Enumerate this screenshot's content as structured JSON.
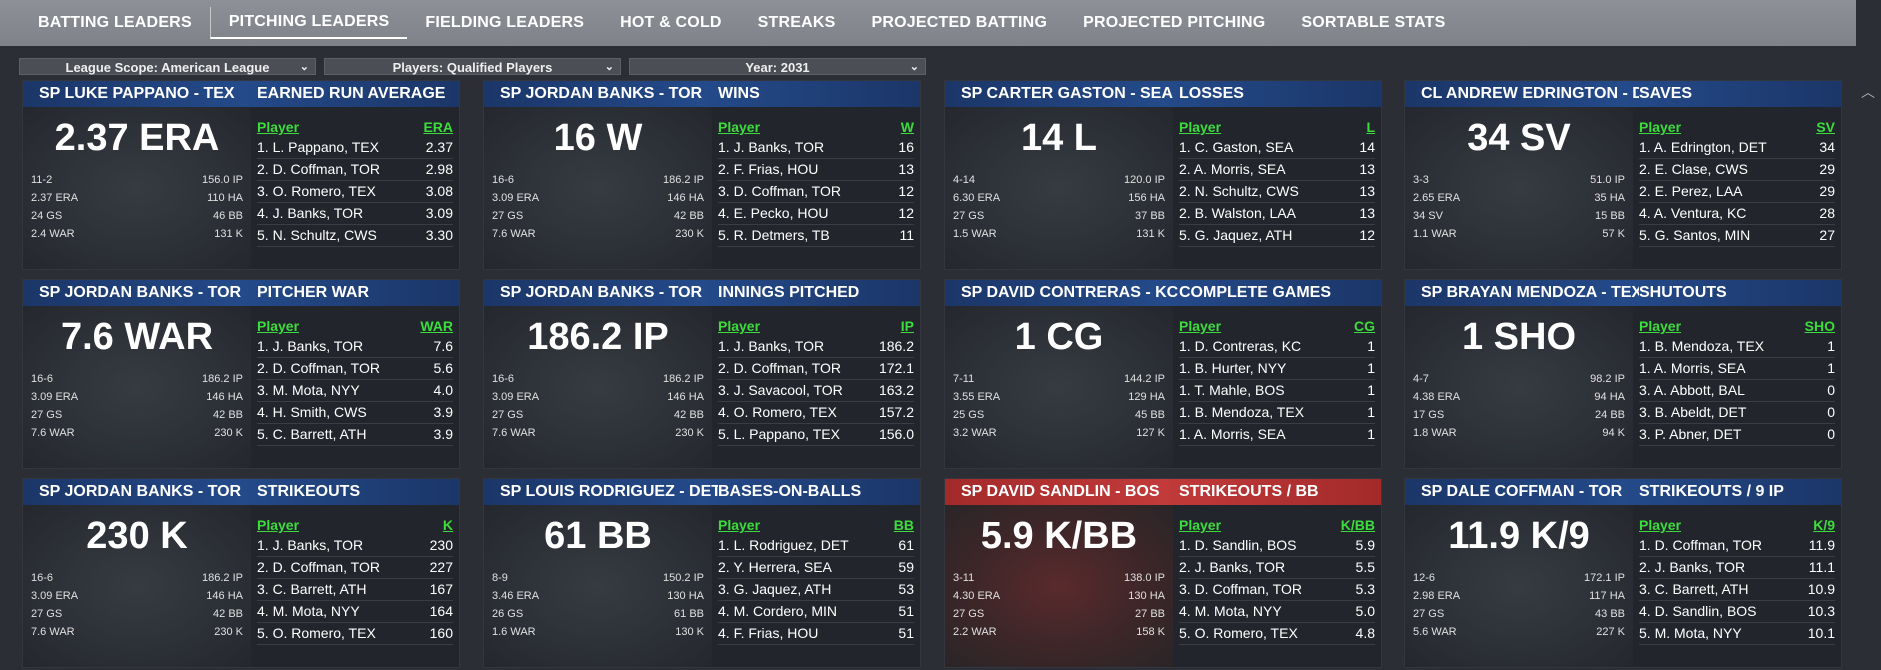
{
  "tabs": [
    "BATTING LEADERS",
    "PITCHING LEADERS",
    "FIELDING LEADERS",
    "HOT & COLD",
    "STREAKS",
    "PROJECTED BATTING",
    "PROJECTED PITCHING",
    "SORTABLE STATS"
  ],
  "active_tab": 1,
  "filters": {
    "scope": "League Scope: American League",
    "players": "Players: Qualified Players",
    "year": "Year: 2031"
  },
  "cards": [
    {
      "player": "SP LUKE PAPPANO - TEX",
      "stat": "EARNED RUN AVERAGE",
      "big": "2.37 ERA",
      "col": "ERA",
      "lines": [
        [
          "11-2",
          "156.0 IP"
        ],
        [
          "2.37 ERA",
          "110 HA"
        ],
        [
          "24 GS",
          "46 BB"
        ],
        [
          "2.4 WAR",
          "131 K"
        ]
      ],
      "rows": [
        [
          "1. L. Pappano, TEX",
          "2.37"
        ],
        [
          "2. D. Coffman, TOR",
          "2.98"
        ],
        [
          "3. O. Romero, TEX",
          "3.08"
        ],
        [
          "4. J. Banks, TOR",
          "3.09"
        ],
        [
          "5. N. Schultz, CWS",
          "3.30"
        ]
      ]
    },
    {
      "player": "SP JORDAN BANKS - TOR",
      "stat": "WINS",
      "big": "16 W",
      "col": "W",
      "lines": [
        [
          "16-6",
          "186.2 IP"
        ],
        [
          "3.09 ERA",
          "146 HA"
        ],
        [
          "27 GS",
          "42 BB"
        ],
        [
          "7.6 WAR",
          "230 K"
        ]
      ],
      "rows": [
        [
          "1. J. Banks, TOR",
          "16"
        ],
        [
          "2. F. Frias, HOU",
          "13"
        ],
        [
          "3. D. Coffman, TOR",
          "12"
        ],
        [
          "4. E. Pecko, HOU",
          "12"
        ],
        [
          "5. R. Detmers, TB",
          "11"
        ]
      ]
    },
    {
      "player": "SP CARTER GASTON - SEA",
      "stat": "LOSSES",
      "big": "14 L",
      "col": "L",
      "lines": [
        [
          "4-14",
          "120.0 IP"
        ],
        [
          "6.30 ERA",
          "156 HA"
        ],
        [
          "27 GS",
          "37 BB"
        ],
        [
          "1.5 WAR",
          "131 K"
        ]
      ],
      "rows": [
        [
          "1. C. Gaston, SEA",
          "14"
        ],
        [
          "2. A. Morris, SEA",
          "13"
        ],
        [
          "2. N. Schultz, CWS",
          "13"
        ],
        [
          "2. B. Walston, LAA",
          "13"
        ],
        [
          "5. G. Jaquez, ATH",
          "12"
        ]
      ]
    },
    {
      "player": "CL ANDREW EDRINGTON - DET",
      "stat": "SAVES",
      "big": "34 SV",
      "col": "SV",
      "lines": [
        [
          "3-3",
          "51.0 IP"
        ],
        [
          "2.65 ERA",
          "35 HA"
        ],
        [
          "34 SV",
          "15 BB"
        ],
        [
          "1.1 WAR",
          "57 K"
        ]
      ],
      "rows": [
        [
          "1. A. Edrington, DET",
          "34"
        ],
        [
          "2. E. Clase, CWS",
          "29"
        ],
        [
          "2. E. Perez, LAA",
          "29"
        ],
        [
          "4. A. Ventura, KC",
          "28"
        ],
        [
          "5. G. Santos, MIN",
          "27"
        ]
      ]
    },
    {
      "player": "SP JORDAN BANKS - TOR",
      "stat": "PITCHER WAR",
      "big": "7.6 WAR",
      "col": "WAR",
      "lines": [
        [
          "16-6",
          "186.2 IP"
        ],
        [
          "3.09 ERA",
          "146 HA"
        ],
        [
          "27 GS",
          "42 BB"
        ],
        [
          "7.6 WAR",
          "230 K"
        ]
      ],
      "rows": [
        [
          "1. J. Banks, TOR",
          "7.6"
        ],
        [
          "2. D. Coffman, TOR",
          "5.6"
        ],
        [
          "3. M. Mota, NYY",
          "4.0"
        ],
        [
          "4. H. Smith, CWS",
          "3.9"
        ],
        [
          "5. C. Barrett, ATH",
          "3.9"
        ]
      ]
    },
    {
      "player": "SP JORDAN BANKS - TOR",
      "stat": "INNINGS PITCHED",
      "big": "186.2 IP",
      "col": "IP",
      "lines": [
        [
          "16-6",
          "186.2 IP"
        ],
        [
          "3.09 ERA",
          "146 HA"
        ],
        [
          "27 GS",
          "42 BB"
        ],
        [
          "7.6 WAR",
          "230 K"
        ]
      ],
      "rows": [
        [
          "1. J. Banks, TOR",
          "186.2"
        ],
        [
          "2. D. Coffman, TOR",
          "172.1"
        ],
        [
          "3. J. Savacool, TOR",
          "163.2"
        ],
        [
          "4. O. Romero, TEX",
          "157.2"
        ],
        [
          "5. L. Pappano, TEX",
          "156.0"
        ]
      ]
    },
    {
      "player": "SP DAVID CONTRERAS - KC",
      "stat": "COMPLETE GAMES",
      "big": "1 CG",
      "col": "CG",
      "lines": [
        [
          "7-11",
          "144.2 IP"
        ],
        [
          "3.55 ERA",
          "129 HA"
        ],
        [
          "25 GS",
          "45 BB"
        ],
        [
          "3.2 WAR",
          "127 K"
        ]
      ],
      "rows": [
        [
          "1. D. Contreras, KC",
          "1"
        ],
        [
          "1. B. Hurter, NYY",
          "1"
        ],
        [
          "1. T. Mahle, BOS",
          "1"
        ],
        [
          "1. B. Mendoza, TEX",
          "1"
        ],
        [
          "1. A. Morris, SEA",
          "1"
        ]
      ]
    },
    {
      "player": "SP BRAYAN MENDOZA - TEX",
      "stat": "SHUTOUTS",
      "big": "1 SHO",
      "col": "SHO",
      "lines": [
        [
          "4-7",
          "98.2 IP"
        ],
        [
          "4.38 ERA",
          "94 HA"
        ],
        [
          "17 GS",
          "24 BB"
        ],
        [
          "1.8 WAR",
          "94 K"
        ]
      ],
      "rows": [
        [
          "1. B. Mendoza, TEX",
          "1"
        ],
        [
          "1. A. Morris, SEA",
          "1"
        ],
        [
          "3. A. Abbott, BAL",
          "0"
        ],
        [
          "3. B. Abeldt, DET",
          "0"
        ],
        [
          "3. P. Abner, DET",
          "0"
        ]
      ]
    },
    {
      "player": "SP JORDAN BANKS - TOR",
      "stat": "STRIKEOUTS",
      "big": "230 K",
      "col": "K",
      "lines": [
        [
          "16-6",
          "186.2 IP"
        ],
        [
          "3.09 ERA",
          "146 HA"
        ],
        [
          "27 GS",
          "42 BB"
        ],
        [
          "7.6 WAR",
          "230 K"
        ]
      ],
      "rows": [
        [
          "1. J. Banks, TOR",
          "230"
        ],
        [
          "2. D. Coffman, TOR",
          "227"
        ],
        [
          "3. C. Barrett, ATH",
          "167"
        ],
        [
          "4. M. Mota, NYY",
          "164"
        ],
        [
          "5. O. Romero, TEX",
          "160"
        ]
      ]
    },
    {
      "player": "SP LOUIS RODRIGUEZ - DET",
      "stat": "BASES-ON-BALLS",
      "big": "61 BB",
      "col": "BB",
      "lines": [
        [
          "8-9",
          "150.2 IP"
        ],
        [
          "3.46 ERA",
          "130 HA"
        ],
        [
          "26 GS",
          "61 BB"
        ],
        [
          "1.6 WAR",
          "130 K"
        ]
      ],
      "rows": [
        [
          "1. L. Rodriguez, DET",
          "61"
        ],
        [
          "2. Y. Herrera, SEA",
          "59"
        ],
        [
          "3. G. Jaquez, ATH",
          "53"
        ],
        [
          "4. M. Cordero, MIN",
          "51"
        ],
        [
          "4. F. Frias, HOU",
          "51"
        ]
      ]
    },
    {
      "player": "SP DAVID SANDLIN - BOS",
      "stat": "STRIKEOUTS / BB",
      "big": "5.9 K/BB",
      "col": "K/BB",
      "red": true,
      "lines": [
        [
          "3-11",
          "138.0 IP"
        ],
        [
          "4.30 ERA",
          "130 HA"
        ],
        [
          "27 GS",
          "27 BB"
        ],
        [
          "2.2 WAR",
          "158 K"
        ]
      ],
      "rows": [
        [
          "1. D. Sandlin, BOS",
          "5.9"
        ],
        [
          "2. J. Banks, TOR",
          "5.5"
        ],
        [
          "3. D. Coffman, TOR",
          "5.3"
        ],
        [
          "4. M. Mota, NYY",
          "5.0"
        ],
        [
          "5. O. Romero, TEX",
          "4.8"
        ]
      ]
    },
    {
      "player": "SP DALE COFFMAN - TOR",
      "stat": "STRIKEOUTS / 9 IP",
      "big": "11.9 K/9",
      "col": "K/9",
      "lines": [
        [
          "12-6",
          "172.1 IP"
        ],
        [
          "2.98 ERA",
          "117 HA"
        ],
        [
          "27 GS",
          "43 BB"
        ],
        [
          "5.6 WAR",
          "227 K"
        ]
      ],
      "rows": [
        [
          "1. D. Coffman, TOR",
          "11.9"
        ],
        [
          "2. J. Banks, TOR",
          "11.1"
        ],
        [
          "3. C. Barrett, ATH",
          "10.9"
        ],
        [
          "4. D. Sandlin, BOS",
          "10.3"
        ],
        [
          "5. M. Mota, NYY",
          "10.1"
        ]
      ]
    }
  ],
  "player_col": "Player",
  "scroll_glyph": "︿"
}
